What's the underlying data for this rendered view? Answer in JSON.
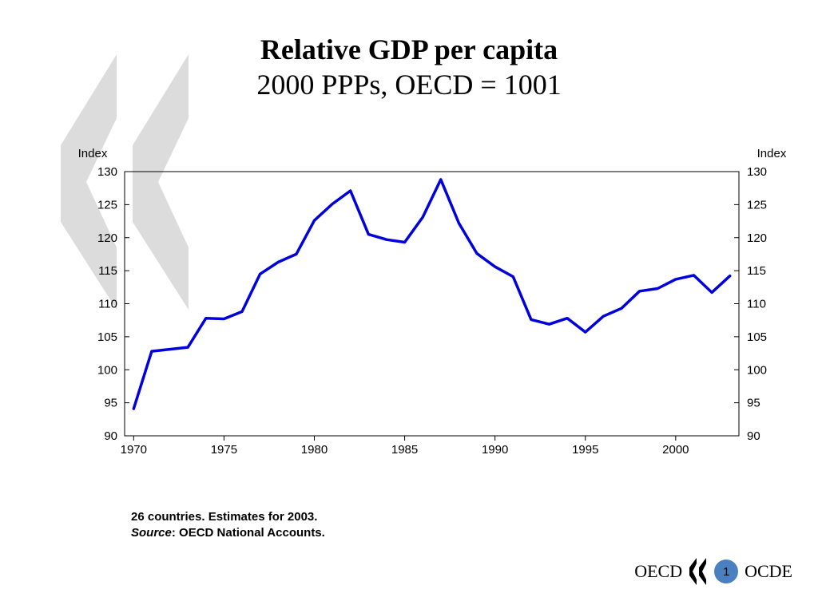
{
  "chart_data": {
    "type": "line",
    "title": "Relative GDP per capita",
    "subtitle": "2000 PPPs, OECD = 1001",
    "ylabel_left": "Index",
    "ylabel_right": "Index",
    "xlabel": "",
    "ylim": [
      90,
      130
    ],
    "xlim": [
      1969.5,
      2003.5
    ],
    "yticks": [
      90,
      95,
      100,
      105,
      110,
      115,
      120,
      125,
      130
    ],
    "xticks": [
      1970,
      1975,
      1980,
      1985,
      1990,
      1995,
      2000
    ],
    "grid": false,
    "series": [
      {
        "name": "Relative GDP per capita",
        "color": "#0000dd",
        "x": [
          1970,
          1971,
          1972,
          1973,
          1974,
          1975,
          1976,
          1977,
          1978,
          1979,
          1980,
          1981,
          1982,
          1983,
          1984,
          1985,
          1986,
          1987,
          1988,
          1989,
          1990,
          1991,
          1992,
          1993,
          1994,
          1995,
          1996,
          1997,
          1998,
          1999,
          2000,
          2001,
          2002,
          2003
        ],
        "values": [
          94.1,
          102.8,
          103.1,
          103.4,
          107.8,
          107.7,
          108.8,
          114.5,
          116.3,
          117.5,
          122.6,
          125.1,
          127.1,
          120.5,
          119.7,
          119.3,
          123.1,
          128.8,
          122.2,
          117.6,
          115.6,
          114.1,
          107.6,
          106.9,
          107.8,
          105.7,
          108.1,
          109.3,
          111.9,
          112.3,
          113.7,
          114.3,
          111.7,
          114.2
        ]
      }
    ]
  },
  "notes": {
    "line1": "26 countries. Estimates for 2003.",
    "source_label": "Source",
    "source_text": ": OECD National Accounts."
  },
  "footer": {
    "brand_en": "OECD",
    "brand_fr": "OCDE",
    "page_number": "1"
  },
  "colors": {
    "watermark": "#dcdcdc",
    "page_badge": "#4a7fc0"
  }
}
